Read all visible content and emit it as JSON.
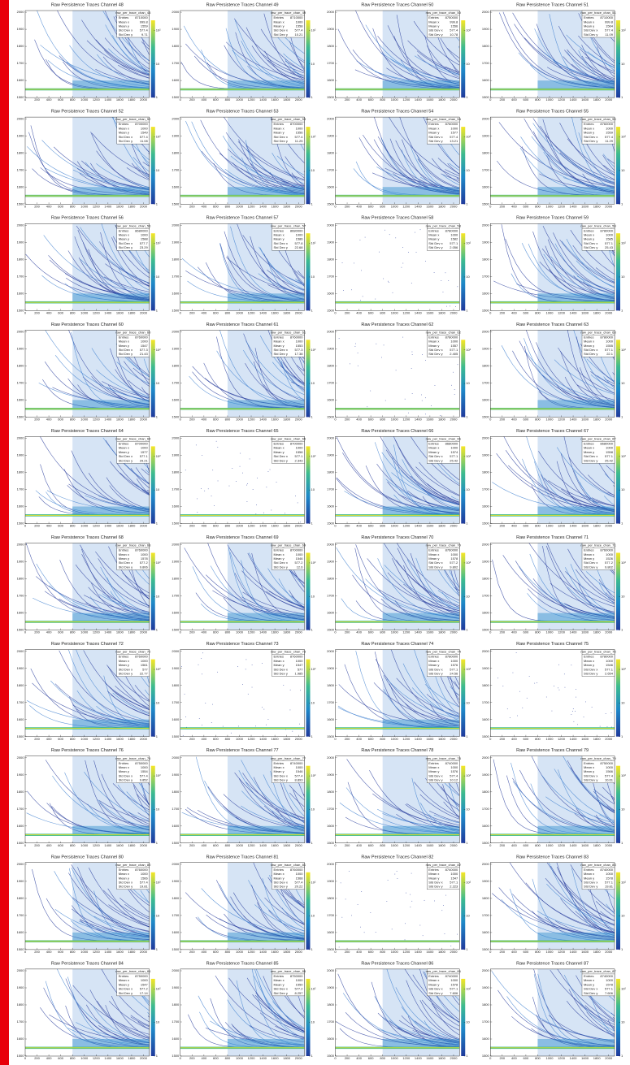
{
  "axes": {
    "xlim": [
      0,
      2100
    ],
    "ylim": [
      1500,
      2010
    ],
    "xticks": [
      0,
      200,
      400,
      600,
      800,
      1000,
      1200,
      1400,
      1600,
      1800,
      2000
    ],
    "yticks": [
      1500,
      1600,
      1700,
      1800,
      1900,
      2000
    ],
    "zticks": [
      1,
      10,
      {
        "value": 100,
        "label": "10²"
      }
    ],
    "stat_labels": [
      "Entries",
      "Mean x",
      "Mean y",
      "Std Dev x",
      "Std Dev y"
    ]
  },
  "panels": [
    {
      "title": "Raw Persistence Traces Channel 48",
      "name": "raw_per_trace_chan_48",
      "pattern": "dense",
      "stats": [
        8710000,
        999.8,
        1559,
        577.4,
        9.71
      ]
    },
    {
      "title": "Raw Persistence Traces Channel 49",
      "name": "raw_per_trace_chan_49",
      "pattern": "dense",
      "stats": [
        8710000,
        1000,
        1558,
        577.4,
        10.21
      ]
    },
    {
      "title": "Raw Persistence Traces Channel 50",
      "name": "raw_per_trace_chan_50",
      "pattern": "dense",
      "stats": [
        8750000,
        999.8,
        1556,
        577.4,
        10.78
      ]
    },
    {
      "title": "Raw Persistence Traces Channel 51",
      "name": "raw_per_trace_chan_51",
      "pattern": "dense",
      "stats": [
        8710000,
        999.8,
        1564,
        577.4,
        11.09
      ]
    },
    {
      "title": "Raw Persistence Traces Channel 52",
      "name": "raw_per_trace_chan_52",
      "pattern": "dense",
      "stats": [
        8700000,
        1000,
        1549,
        577.4,
        11.08
      ]
    },
    {
      "title": "Raw Persistence Traces Channel 53",
      "name": "raw_per_trace_chan_53",
      "pattern": "dense",
      "stats": [
        8700000,
        1000,
        1556,
        577.4,
        11.25
      ]
    },
    {
      "title": "Raw Persistence Traces Channel 54",
      "name": "raw_per_trace_chan_54",
      "pattern": "dense",
      "stats": [
        8760000,
        1000,
        1577,
        577.4,
        13.21
      ]
    },
    {
      "title": "Raw Persistence Traces Channel 55",
      "name": "raw_per_trace_chan_55",
      "pattern": "dense",
      "stats": [
        8760000,
        1000,
        1559,
        577.4,
        11.29
      ]
    },
    {
      "title": "Raw Persistence Traces Channel 56",
      "name": "raw_per_trace_chan_56",
      "pattern": "dense",
      "stats": [
        8680000,
        1000,
        1588,
        577.7,
        23.29
      ]
    },
    {
      "title": "Raw Persistence Traces Channel 57",
      "name": "raw_per_trace_chan_57",
      "pattern": "dense",
      "stats": [
        8680000,
        1000,
        1586,
        577.8,
        22.68
      ]
    },
    {
      "title": "Raw Persistence Traces Channel 58",
      "name": "raw_per_trace_chan_58",
      "pattern": "sparse",
      "stats": [
        8780000,
        1000,
        1582,
        577.1,
        2.056
      ]
    },
    {
      "title": "Raw Persistence Traces Channel 59",
      "name": "raw_per_trace_chan_59",
      "pattern": "dense",
      "stats": [
        8780000,
        1000,
        1585,
        577.1,
        25.43
      ]
    },
    {
      "title": "Raw Persistence Traces Channel 60",
      "name": "raw_per_trace_chan_60",
      "pattern": "dense",
      "stats": [
        8760000,
        1000,
        1547,
        577.3,
        21.43
      ]
    },
    {
      "title": "Raw Persistence Traces Channel 61",
      "name": "raw_per_trace_chan_61",
      "pattern": "dense",
      "stats": [
        8760000,
        1000,
        1553,
        577.3,
        17.38
      ]
    },
    {
      "title": "Raw Persistence Traces Channel 62",
      "name": "raw_per_trace_chan_62",
      "pattern": "sparse",
      "stats": [
        8780000,
        1000,
        1557,
        577.1,
        2.405
      ]
    },
    {
      "title": "Raw Persistence Traces Channel 63",
      "name": "raw_per_trace_chan_63",
      "pattern": "dense",
      "stats": [
        8780000,
        1000,
        1555,
        577.1,
        22.1
      ]
    },
    {
      "title": "Raw Persistence Traces Channel 64",
      "name": "raw_per_trace_chan_64",
      "pattern": "dense",
      "stats": [
        8700000,
        1000,
        1577,
        577.1,
        29.21
      ]
    },
    {
      "title": "Raw Persistence Traces Channel 65",
      "name": "raw_per_trace_chan_65",
      "pattern": "sparse",
      "stats": [
        8700000,
        1000,
        1558,
        577.1,
        2.343
      ]
    },
    {
      "title": "Raw Persistence Traces Channel 66",
      "name": "raw_per_trace_chan_66",
      "pattern": "dense",
      "stats": [
        8680000,
        1000,
        1574,
        577.1,
        25.42
      ]
    },
    {
      "title": "Raw Persistence Traces Channel 67",
      "name": "raw_per_trace_chan_67",
      "pattern": "dense",
      "stats": [
        8680000,
        1000,
        1558,
        577.1,
        25.42
      ]
    },
    {
      "title": "Raw Persistence Traces Channel 68",
      "name": "raw_per_trace_chan_68",
      "pattern": "dense",
      "stats": [
        8760000,
        1000,
        1578,
        577.2,
        9.806
      ]
    },
    {
      "title": "Raw Persistence Traces Channel 69",
      "name": "raw_per_trace_chan_69",
      "pattern": "dense",
      "stats": [
        8700000,
        1000,
        1546,
        577.2,
        12.6
      ]
    },
    {
      "title": "Raw Persistence Traces Channel 70",
      "name": "raw_per_trace_chan_70",
      "pattern": "dense",
      "stats": [
        8760000,
        1000,
        1578,
        577.2,
        9.802
      ]
    },
    {
      "title": "Raw Persistence Traces Channel 71",
      "name": "raw_per_trace_chan_71",
      "pattern": "dense",
      "stats": [
        8760000,
        1000,
        1526,
        577.2,
        9.802
      ]
    },
    {
      "title": "Raw Persistence Traces Channel 72",
      "name": "raw_per_trace_chan_72",
      "pattern": "dense",
      "stats": [
        8760000,
        1000,
        1561,
        577.0,
        22.77
      ]
    },
    {
      "title": "Raw Persistence Traces Channel 73",
      "name": "raw_per_trace_chan_73",
      "pattern": "sparse",
      "stats": [
        8760000,
        1000,
        1547,
        577.0,
        1.985
      ]
    },
    {
      "title": "Raw Persistence Traces Channel 74",
      "name": "raw_per_trace_chan_74",
      "pattern": "dense",
      "stats": [
        8780000,
        1000,
        1576,
        577.1,
        24.56
      ]
    },
    {
      "title": "Raw Persistence Traces Channel 75",
      "name": "raw_per_trace_chan_75",
      "pattern": "sparse",
      "stats": [
        8780000,
        1000,
        1546,
        577.1,
        2.654
      ]
    },
    {
      "title": "Raw Persistence Traces Channel 76",
      "name": "raw_per_trace_chan_76",
      "pattern": "dense",
      "stats": [
        8750000,
        1000,
        1554,
        577.4,
        9.852
      ]
    },
    {
      "title": "Raw Persistence Traces Channel 77",
      "name": "raw_per_trace_chan_77",
      "pattern": "dense",
      "stats": [
        8740000,
        1000,
        1546,
        577.4,
        8.893
      ]
    },
    {
      "title": "Raw Persistence Traces Channel 78",
      "name": "raw_per_trace_chan_78",
      "pattern": "dense",
      "stats": [
        8740000,
        1000,
        1576,
        577.4,
        10.12
      ]
    },
    {
      "title": "Raw Persistence Traces Channel 79",
      "name": "raw_per_trace_chan_79",
      "pattern": "dense",
      "stats": [
        8750000,
        1000,
        1566,
        577.4,
        10.61
      ]
    },
    {
      "title": "Raw Persistence Traces Channel 80",
      "name": "raw_per_trace_chan_80",
      "pattern": "dense",
      "stats": [
        8760000,
        1000,
        1566,
        577.4,
        19.81
      ]
    },
    {
      "title": "Raw Persistence Traces Channel 81",
      "name": "raw_per_trace_chan_81",
      "pattern": "dense",
      "stats": [
        8760000,
        1000,
        1568,
        577.4,
        20.22
      ]
    },
    {
      "title": "Raw Persistence Traces Channel 82",
      "name": "raw_per_trace_chan_82",
      "pattern": "sparse",
      "stats": [
        8740000,
        1000,
        1547,
        577.1,
        2.223
      ]
    },
    {
      "title": "Raw Persistence Traces Channel 83",
      "name": "raw_per_trace_chan_83",
      "pattern": "dense",
      "stats": [
        8740000,
        1000,
        1578,
        577.1,
        19.81
      ]
    },
    {
      "title": "Raw Persistence Traces Channel 84",
      "name": "raw_per_trace_chan_84",
      "pattern": "dense",
      "stats": [
        8750000,
        1000,
        1547,
        577.2,
        17.14
      ]
    },
    {
      "title": "Raw Persistence Traces Channel 85",
      "name": "raw_per_trace_chan_85",
      "pattern": "dense",
      "stats": [
        8750000,
        1000,
        1550,
        577.2,
        8.257
      ]
    },
    {
      "title": "Raw Persistence Traces Channel 86",
      "name": "raw_per_trace_chan_86",
      "pattern": "dense",
      "stats": [
        8740000,
        1000,
        1578,
        577.1,
        7.606
      ]
    },
    {
      "title": "Raw Persistence Traces Channel 87",
      "name": "raw_per_trace_chan_87",
      "pattern": "dense",
      "stats": [
        8740000,
        1000,
        1578,
        577.1,
        7.606
      ]
    }
  ]
}
